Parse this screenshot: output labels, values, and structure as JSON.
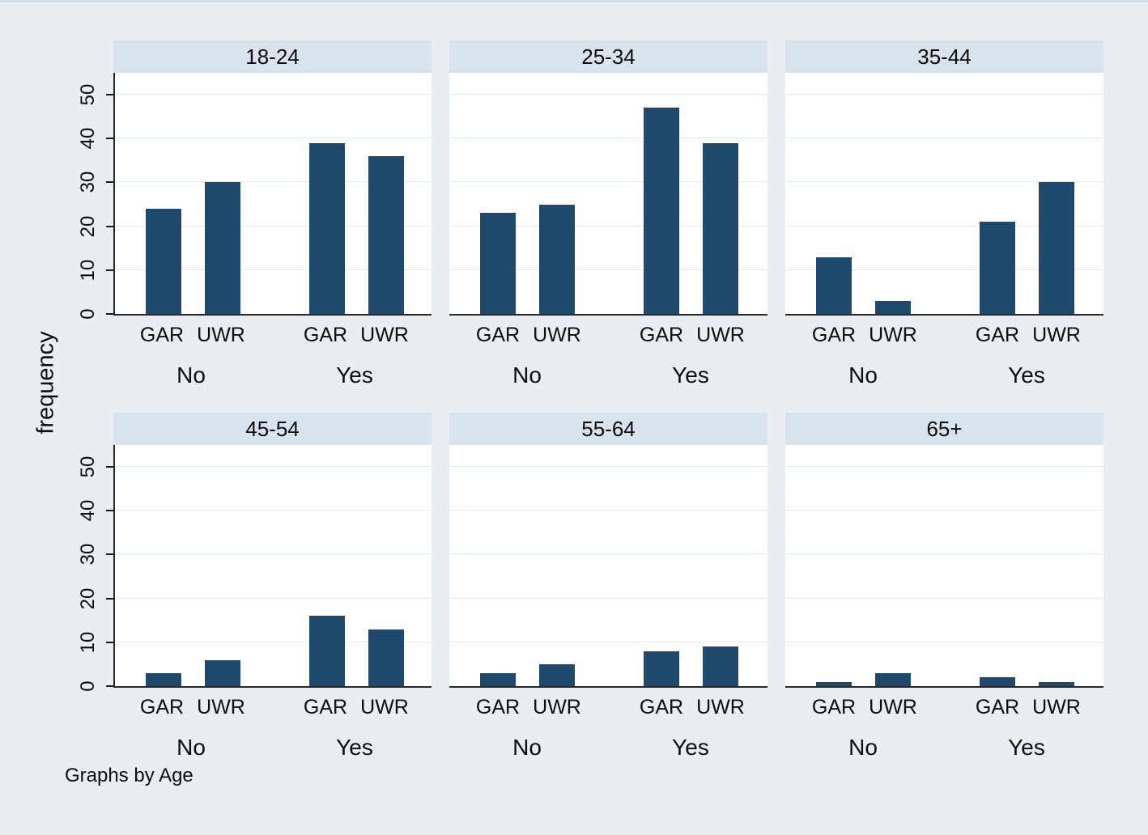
{
  "figure": {
    "ylabel": "frequency",
    "note": "Graphs by Age"
  },
  "colors": {
    "bar": "#1f4a6e",
    "band_background": "#d8e3eb",
    "page_background": "#e9eef2",
    "plot_background": "#ffffff",
    "gridline": "#e2ecf1",
    "axis": "#2a2a2a"
  },
  "chart_data": {
    "type": "bar",
    "title": "",
    "facet_by": "Age",
    "ylabel": "frequency",
    "xlabel": "",
    "ylim": [
      0,
      55
    ],
    "yticks": [
      0,
      10,
      20,
      30,
      40,
      50
    ],
    "grid": true,
    "legend": "none",
    "group_labels": [
      "No",
      "Yes"
    ],
    "bar_labels": [
      "GAR",
      "UWR"
    ],
    "bar_order": [
      "No-GAR",
      "No-UWR",
      "Yes-GAR",
      "Yes-UWR"
    ],
    "note": "Graphs by Age",
    "panels": [
      {
        "title": "18-24",
        "values": [
          24,
          30,
          39,
          36
        ]
      },
      {
        "title": "25-34",
        "values": [
          23,
          25,
          47,
          39
        ]
      },
      {
        "title": "35-44",
        "values": [
          13,
          3,
          21,
          30
        ]
      },
      {
        "title": "45-54",
        "values": [
          3,
          6,
          16,
          13
        ]
      },
      {
        "title": "55-64",
        "values": [
          3,
          5,
          8,
          9
        ]
      },
      {
        "title": "65+",
        "values": [
          1,
          3,
          2,
          1
        ]
      }
    ]
  }
}
